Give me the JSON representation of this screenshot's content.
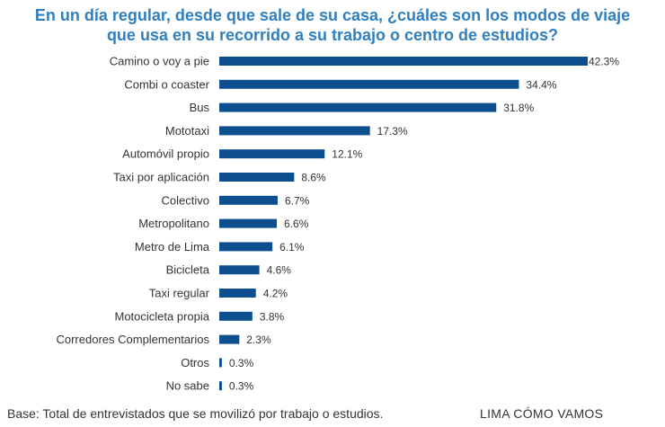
{
  "title_line1": "En un día regular, desde que sale de su casa, ¿cuáles son los modos de viaje",
  "title_line2": "que usa en su recorrido a su trabajo o centro de estudios?",
  "footer_note": "Base: Total de entrevistados que se movilizó por trabajo o estudios.",
  "footer_brand": "LIMA CÓMO VAMOS",
  "colors": {
    "bar": "#0d4e8f",
    "title": "#2f7fc1",
    "text": "#333333"
  },
  "chart_data": {
    "type": "bar",
    "orientation": "horizontal",
    "categories": [
      "Camino o voy a pie",
      "Combi o coaster",
      "Bus",
      "Mototaxi",
      "Automóvil propio",
      "Taxi por aplicación",
      "Colectivo",
      "Metropolitano",
      "Metro de Lima",
      "Bicicleta",
      "Taxi regular",
      "Motocicleta propia",
      "Corredores Complementarios",
      "Otros",
      "No sabe"
    ],
    "values": [
      42.3,
      34.4,
      31.8,
      17.3,
      12.1,
      8.6,
      6.7,
      6.6,
      6.1,
      4.6,
      4.2,
      3.8,
      2.3,
      0.3,
      0.3
    ],
    "value_labels": [
      "42.3%",
      "34.4%",
      "31.8%",
      "17.3%",
      "12.1%",
      "8.6%",
      "6.7%",
      "6.6%",
      "6.1%",
      "4.6%",
      "4.2%",
      "3.8%",
      "2.3%",
      "0.3%",
      "0.3%"
    ],
    "xlim": [
      0,
      42.3
    ],
    "grid": false,
    "legend": false
  }
}
